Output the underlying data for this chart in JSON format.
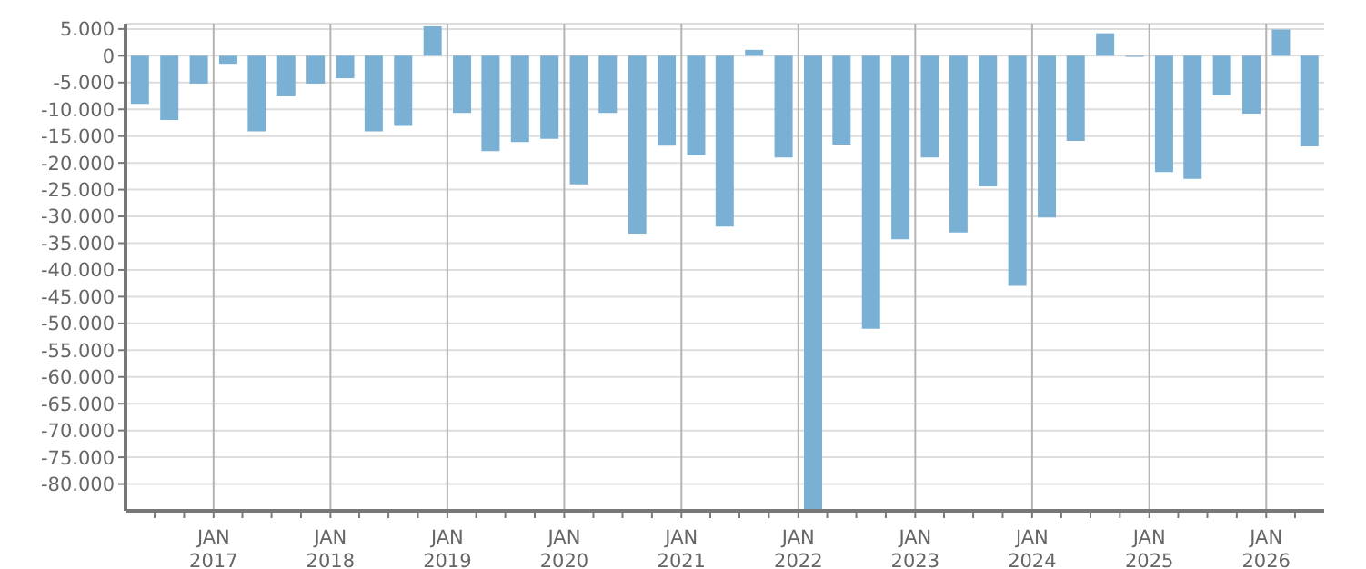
{
  "chart_data": {
    "type": "bar",
    "color": "#7ab0d3",
    "x": [
      "2016-05-15",
      "2016-08-15",
      "2016-11-15",
      "2017-02-15",
      "2017-05-15",
      "2017-08-15",
      "2017-11-15",
      "2018-02-15",
      "2018-05-15",
      "2018-08-15",
      "2018-11-15",
      "2019-02-15",
      "2019-05-15",
      "2019-08-15",
      "2019-11-15",
      "2020-02-15",
      "2020-05-15",
      "2020-08-15",
      "2020-11-15",
      "2021-02-15",
      "2021-05-15",
      "2021-08-15",
      "2021-11-15",
      "2022-02-15",
      "2022-05-15",
      "2022-08-15",
      "2022-11-15",
      "2023-02-15",
      "2023-05-15",
      "2023-08-15",
      "2023-11-15",
      "2024-02-15",
      "2024-05-15",
      "2024-08-15",
      "2024-11-15",
      "2025-02-15",
      "2025-05-15",
      "2025-08-15",
      "2025-11-15",
      "2026-02-15",
      "2026-05-15"
    ],
    "values": [
      -9000,
      -12000,
      -5200,
      -1500,
      -14100,
      -7600,
      -5200,
      -4200,
      -14100,
      -13100,
      5500,
      -10700,
      -17800,
      -16100,
      -15500,
      -24000,
      -10700,
      -33200,
      -16800,
      -18600,
      -31900,
      1100,
      -19000,
      -85000,
      -16600,
      -51000,
      -34300,
      -19000,
      -33000,
      -24400,
      -43000,
      -30200,
      -15900,
      4200,
      -200,
      -21700,
      -23000,
      -7400,
      -10800,
      4900,
      -16900
    ],
    "xlim": [
      "2016-04-01",
      "2026-07-01"
    ],
    "xticks": [
      {
        "value": "2016-07-01",
        "label": null
      },
      {
        "value": "2016-10-01",
        "label": null
      },
      {
        "value": "2017-01-01",
        "label": "JAN\n2017"
      },
      {
        "value": "2017-04-01",
        "label": null
      },
      {
        "value": "2017-07-01",
        "label": null
      },
      {
        "value": "2017-10-01",
        "label": null
      },
      {
        "value": "2018-01-01",
        "label": "JAN\n2018"
      },
      {
        "value": "2018-04-01",
        "label": null
      },
      {
        "value": "2018-07-01",
        "label": null
      },
      {
        "value": "2018-10-01",
        "label": null
      },
      {
        "value": "2019-01-01",
        "label": "JAN\n2019"
      },
      {
        "value": "2019-04-01",
        "label": null
      },
      {
        "value": "2019-07-01",
        "label": null
      },
      {
        "value": "2019-10-01",
        "label": null
      },
      {
        "value": "2020-01-01",
        "label": "JAN\n2020"
      },
      {
        "value": "2020-04-01",
        "label": null
      },
      {
        "value": "2020-07-01",
        "label": null
      },
      {
        "value": "2020-10-01",
        "label": null
      },
      {
        "value": "2021-01-01",
        "label": "JAN\n2021"
      },
      {
        "value": "2021-04-01",
        "label": null
      },
      {
        "value": "2021-07-01",
        "label": null
      },
      {
        "value": "2021-10-01",
        "label": null
      },
      {
        "value": "2022-01-01",
        "label": "JAN\n2022"
      },
      {
        "value": "2022-04-01",
        "label": null
      },
      {
        "value": "2022-07-01",
        "label": null
      },
      {
        "value": "2022-10-01",
        "label": null
      },
      {
        "value": "2023-01-01",
        "label": "JAN\n2023"
      },
      {
        "value": "2023-04-01",
        "label": null
      },
      {
        "value": "2023-07-01",
        "label": null
      },
      {
        "value": "2023-10-01",
        "label": null
      },
      {
        "value": "2024-01-01",
        "label": "JAN\n2024"
      },
      {
        "value": "2024-04-01",
        "label": null
      },
      {
        "value": "2024-07-01",
        "label": null
      },
      {
        "value": "2024-10-01",
        "label": null
      },
      {
        "value": "2025-01-01",
        "label": "JAN\n2025"
      },
      {
        "value": "2025-04-01",
        "label": null
      },
      {
        "value": "2025-07-01",
        "label": null
      },
      {
        "value": "2025-10-01",
        "label": null
      },
      {
        "value": "2026-01-01",
        "label": "JAN\n2026"
      },
      {
        "value": "2026-04-01",
        "label": null
      }
    ],
    "ylim": [
      -85000,
      6000
    ],
    "yticks": [
      {
        "value": 5000,
        "label": "5.000"
      },
      {
        "value": 0,
        "label": "0"
      },
      {
        "value": -5000,
        "label": "-5.000"
      },
      {
        "value": -10000,
        "label": "-10.000"
      },
      {
        "value": -15000,
        "label": "-15.000"
      },
      {
        "value": -20000,
        "label": "-20.000"
      },
      {
        "value": -25000,
        "label": "-25.000"
      },
      {
        "value": -30000,
        "label": "-30.000"
      },
      {
        "value": -35000,
        "label": "-35.000"
      },
      {
        "value": -40000,
        "label": "-40.000"
      },
      {
        "value": -45000,
        "label": "-45.000"
      },
      {
        "value": -50000,
        "label": "-50.000"
      },
      {
        "value": -55000,
        "label": "-55.000"
      },
      {
        "value": -60000,
        "label": "-60.000"
      },
      {
        "value": -65000,
        "label": "-65.000"
      },
      {
        "value": -70000,
        "label": "-70.000"
      },
      {
        "value": -75000,
        "label": "-75.000"
      },
      {
        "value": -80000,
        "label": "-80.000"
      }
    ],
    "grid": true
  }
}
